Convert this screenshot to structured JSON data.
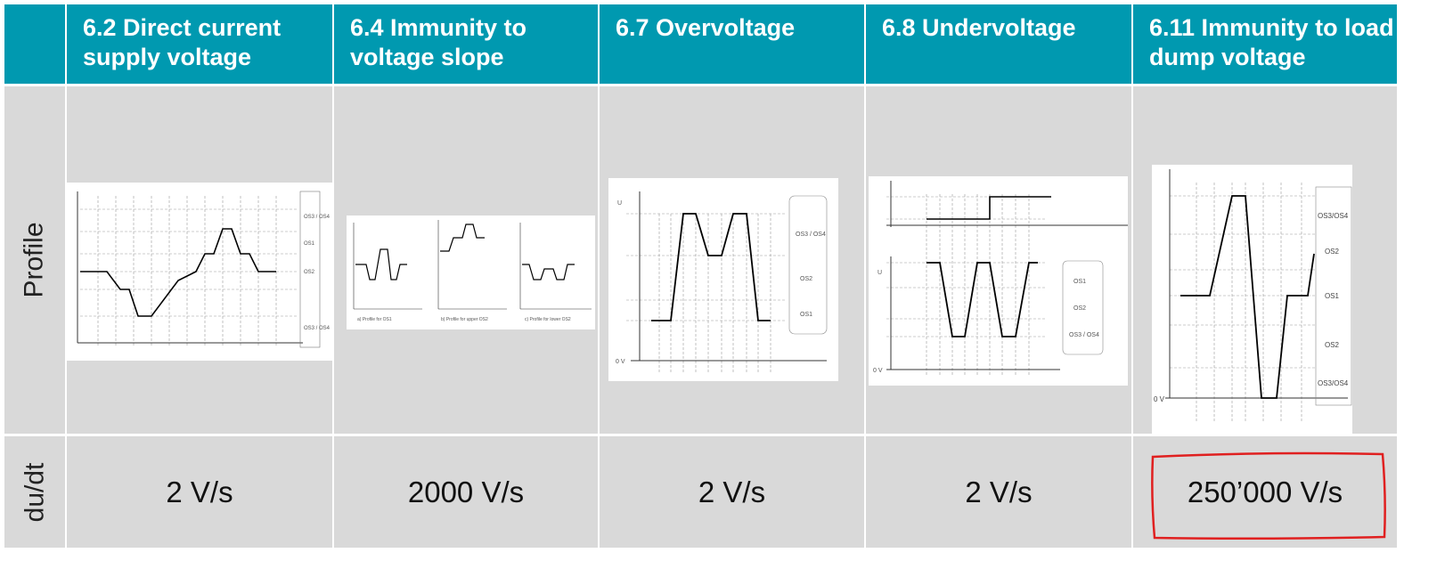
{
  "header": {
    "columns": [
      "6.2 Direct current supply voltage",
      "6.4 Immunity to voltage slope",
      "6.7 Overvoltage",
      "6.8 Undervoltage",
      "6.11 Immunity to load dump voltage"
    ]
  },
  "rows": {
    "profile_label": "Profile",
    "dudt_label": "du/dt"
  },
  "dudt_values": [
    "2 V/s",
    "2000 V/s",
    "2 V/s",
    "2 V/s",
    "250’000 V/s"
  ],
  "profiles": {
    "p1": {
      "zones": [
        "OS3 / OS4",
        "OS1",
        "OS2",
        "OS3 / OS4"
      ]
    },
    "p2": {
      "captions": [
        "a) Profile for OS1",
        "b) Profile for upper OS2",
        "c) Profile for lower OS2"
      ]
    },
    "p3": {
      "zones": [
        "OS3 / OS4",
        "OS2",
        "OS1"
      ],
      "y_axis": "U",
      "zero": "0 V"
    },
    "p4": {
      "zones": [
        "OS1",
        "OS2",
        "OS3 / OS4"
      ],
      "y_axis": "U",
      "zero": "0 V"
    },
    "p5": {
      "zones": [
        "OS3/OS4",
        "OS2",
        "OS1",
        "OS2",
        "OS3/OS4"
      ],
      "zero": "0 V"
    }
  },
  "highlight_color": "#e02020",
  "header_color": "#0099b0"
}
